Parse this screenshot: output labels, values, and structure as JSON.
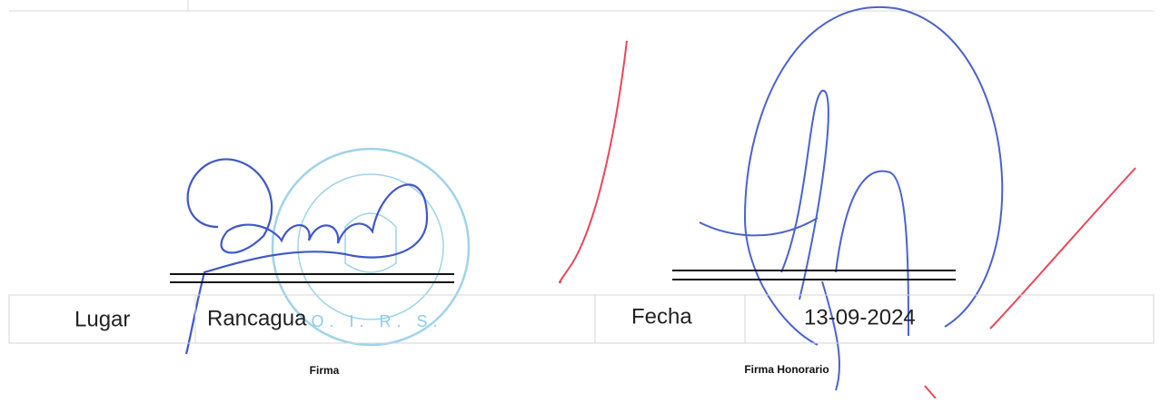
{
  "row": {
    "place_label": "Lugar",
    "place": "Rancagua",
    "date_label": "Fecha",
    "date": "13-09-2024"
  },
  "signatures": {
    "left_caption": "Firma",
    "right_caption": "Firma Honorario"
  },
  "stamp": {
    "text": "O. I. R. S."
  }
}
